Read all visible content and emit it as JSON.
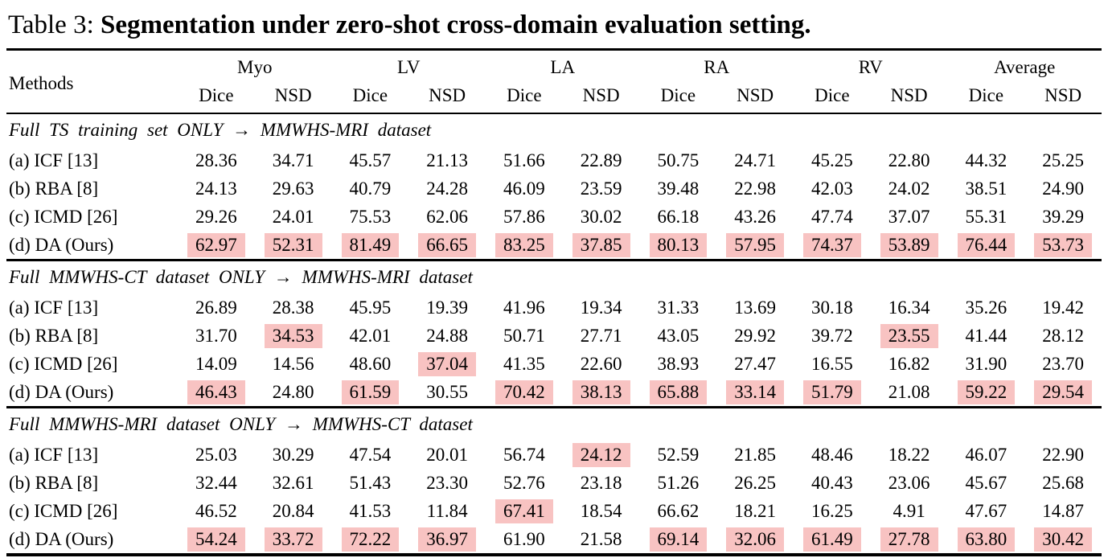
{
  "caption": {
    "label": "Table 3:",
    "text": "Segmentation under zero-shot cross-domain evaluation setting."
  },
  "colors": {
    "highlight": "#f8c3c2",
    "text": "#000000",
    "rule": "#000000"
  },
  "table": {
    "methods_header": "Methods",
    "groups": [
      "Myo",
      "LV",
      "LA",
      "RA",
      "RV",
      "Average"
    ],
    "sub_labels": [
      "Dice",
      "NSD"
    ],
    "sections": [
      {
        "header": "Full TS training set ONLY → MMWHS-MRI dataset",
        "rows": [
          {
            "method": "(a) ICF [13]",
            "values": [
              "28.36",
              "34.71",
              "45.57",
              "21.13",
              "51.66",
              "22.89",
              "50.75",
              "24.71",
              "45.25",
              "22.80",
              "44.32",
              "25.25"
            ],
            "highlight": [
              0,
              0,
              0,
              0,
              0,
              0,
              0,
              0,
              0,
              0,
              0,
              0
            ]
          },
          {
            "method": "(b) RBA [8]",
            "values": [
              "24.13",
              "29.63",
              "40.79",
              "24.28",
              "46.09",
              "23.59",
              "39.48",
              "22.98",
              "42.03",
              "24.02",
              "38.51",
              "24.90"
            ],
            "highlight": [
              0,
              0,
              0,
              0,
              0,
              0,
              0,
              0,
              0,
              0,
              0,
              0
            ]
          },
          {
            "method": "(c) ICMD [26]",
            "values": [
              "29.26",
              "24.01",
              "75.53",
              "62.06",
              "57.86",
              "30.02",
              "66.18",
              "43.26",
              "47.74",
              "37.07",
              "55.31",
              "39.29"
            ],
            "highlight": [
              0,
              0,
              0,
              0,
              0,
              0,
              0,
              0,
              0,
              0,
              0,
              0
            ]
          },
          {
            "method": "(d) DA (Ours)",
            "values": [
              "62.97",
              "52.31",
              "81.49",
              "66.65",
              "83.25",
              "37.85",
              "80.13",
              "57.95",
              "74.37",
              "53.89",
              "76.44",
              "53.73"
            ],
            "highlight": [
              1,
              1,
              1,
              1,
              1,
              1,
              1,
              1,
              1,
              1,
              1,
              1
            ]
          }
        ]
      },
      {
        "header": "Full MMWHS-CT dataset ONLY → MMWHS-MRI dataset",
        "rows": [
          {
            "method": "(a) ICF [13]",
            "values": [
              "26.89",
              "28.38",
              "45.95",
              "19.39",
              "41.96",
              "19.34",
              "31.33",
              "13.69",
              "30.18",
              "16.34",
              "35.26",
              "19.42"
            ],
            "highlight": [
              0,
              0,
              0,
              0,
              0,
              0,
              0,
              0,
              0,
              0,
              0,
              0
            ]
          },
          {
            "method": "(b) RBA [8]",
            "values": [
              "31.70",
              "34.53",
              "42.01",
              "24.88",
              "50.71",
              "27.71",
              "43.05",
              "29.92",
              "39.72",
              "23.55",
              "41.44",
              "28.12"
            ],
            "highlight": [
              0,
              1,
              0,
              0,
              0,
              0,
              0,
              0,
              0,
              1,
              0,
              0
            ]
          },
          {
            "method": "(c) ICMD [26]",
            "values": [
              "14.09",
              "14.56",
              "48.60",
              "37.04",
              "41.35",
              "22.60",
              "38.93",
              "27.47",
              "16.55",
              "16.82",
              "31.90",
              "23.70"
            ],
            "highlight": [
              0,
              0,
              0,
              1,
              0,
              0,
              0,
              0,
              0,
              0,
              0,
              0
            ]
          },
          {
            "method": "(d) DA (Ours)",
            "values": [
              "46.43",
              "24.80",
              "61.59",
              "30.55",
              "70.42",
              "38.13",
              "65.88",
              "33.14",
              "51.79",
              "21.08",
              "59.22",
              "29.54"
            ],
            "highlight": [
              1,
              0,
              1,
              0,
              1,
              1,
              1,
              1,
              1,
              0,
              1,
              1
            ]
          }
        ]
      },
      {
        "header": "Full MMWHS-MRI dataset ONLY → MMWHS-CT dataset",
        "rows": [
          {
            "method": "(a) ICF [13]",
            "values": [
              "25.03",
              "30.29",
              "47.54",
              "20.01",
              "56.74",
              "24.12",
              "52.59",
              "21.85",
              "48.46",
              "18.22",
              "46.07",
              "22.90"
            ],
            "highlight": [
              0,
              0,
              0,
              0,
              0,
              1,
              0,
              0,
              0,
              0,
              0,
              0
            ]
          },
          {
            "method": "(b) RBA [8]",
            "values": [
              "32.44",
              "32.61",
              "51.43",
              "23.30",
              "52.76",
              "23.18",
              "51.26",
              "26.25",
              "40.43",
              "23.06",
              "45.67",
              "25.68"
            ],
            "highlight": [
              0,
              0,
              0,
              0,
              0,
              0,
              0,
              0,
              0,
              0,
              0,
              0
            ]
          },
          {
            "method": "(c) ICMD [26]",
            "values": [
              "46.52",
              "20.84",
              "41.53",
              "11.84",
              "67.41",
              "18.54",
              "66.62",
              "18.21",
              "16.25",
              "4.91",
              "47.67",
              "14.87"
            ],
            "highlight": [
              0,
              0,
              0,
              0,
              1,
              0,
              0,
              0,
              0,
              0,
              0,
              0
            ]
          },
          {
            "method": "(d) DA (Ours)",
            "values": [
              "54.24",
              "33.72",
              "72.22",
              "36.97",
              "61.90",
              "21.58",
              "69.14",
              "32.06",
              "61.49",
              "27.78",
              "63.80",
              "30.42"
            ],
            "highlight": [
              1,
              1,
              1,
              1,
              0,
              0,
              1,
              1,
              1,
              1,
              1,
              1
            ]
          }
        ]
      }
    ]
  }
}
